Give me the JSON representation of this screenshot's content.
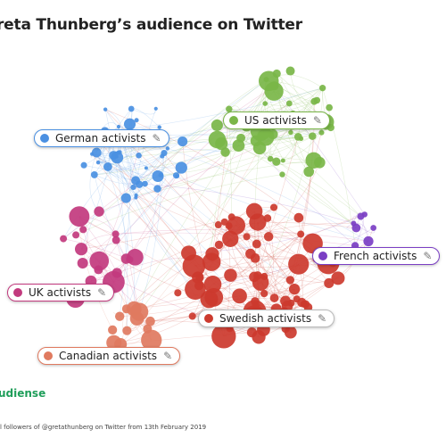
{
  "title": "reta Thunberg’s audience on Twitter",
  "clusters": [
    {
      "label": "German activists",
      "color": "#4a90e2",
      "border": "#4a90e2"
    },
    {
      "label": "US activists",
      "color": "#7ab648",
      "border": "#7ab648"
    },
    {
      "label": "French activists",
      "color": "#7b3fc4",
      "border": "#7b3fc4"
    },
    {
      "label": "UK activists",
      "color": "#c23a7e",
      "border": "#c23a7e"
    },
    {
      "label": "Swedish activists",
      "color": "#cc3a2e",
      "border": "#bbbbbb"
    },
    {
      "label": "Canadian activists",
      "color": "#e07a5f",
      "border": "#e07a5f"
    }
  ],
  "edit_icon": "pencil-icon",
  "brand": "udiense",
  "footnote": "l followers of @gretathunberg on Twitter from 13th February 2019"
}
